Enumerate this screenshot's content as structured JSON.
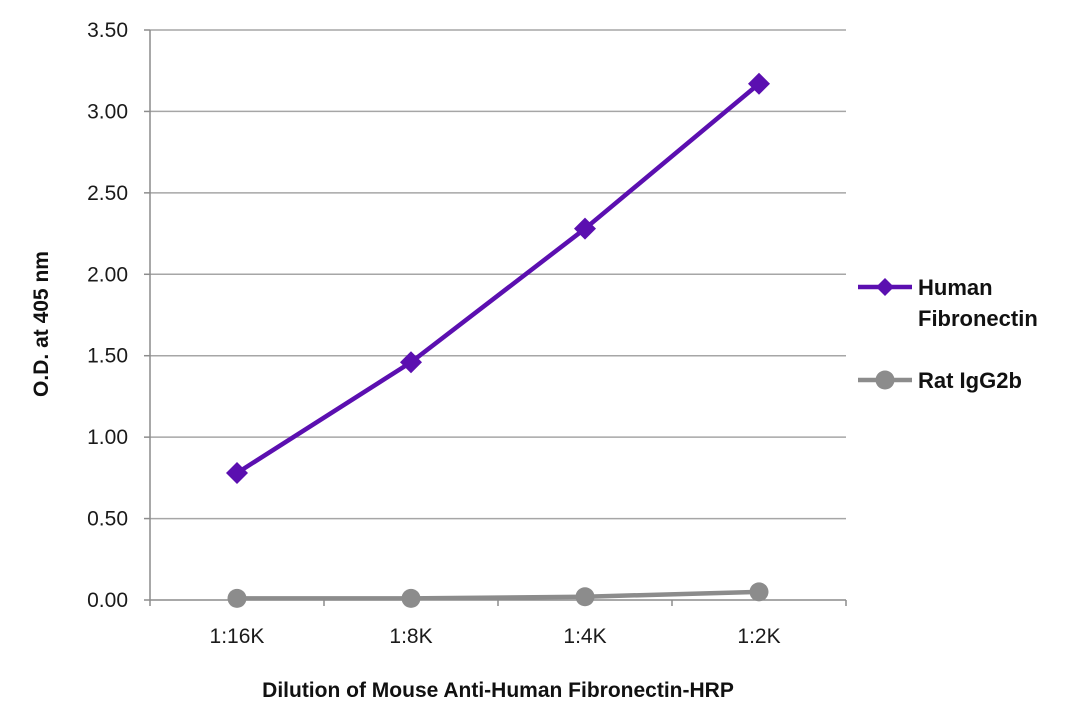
{
  "chart_data": {
    "type": "line",
    "title": "",
    "xlabel": "Dilution of Mouse Anti-Human Fibronectin-HRP",
    "ylabel": "O.D. at 405 nm",
    "categories": [
      "1:16K",
      "1:8K",
      "1:4K",
      "1:2K"
    ],
    "ylim": [
      0,
      3.5
    ],
    "yticks": [
      "0.00",
      "0.50",
      "1.00",
      "1.50",
      "2.00",
      "2.50",
      "3.00",
      "3.50"
    ],
    "grid": true,
    "legend_position": "right",
    "series": [
      {
        "name": "Human Fibronectin",
        "name_lines": [
          "Human",
          "Fibronectin"
        ],
        "values": [
          0.78,
          1.46,
          2.28,
          3.17
        ],
        "color": "#5b0fb0",
        "marker": "diamond"
      },
      {
        "name": "Rat IgG2b",
        "name_lines": [
          "Rat IgG2b"
        ],
        "values": [
          0.01,
          0.01,
          0.02,
          0.05
        ],
        "color": "#8c8c8c",
        "marker": "circle"
      }
    ]
  }
}
